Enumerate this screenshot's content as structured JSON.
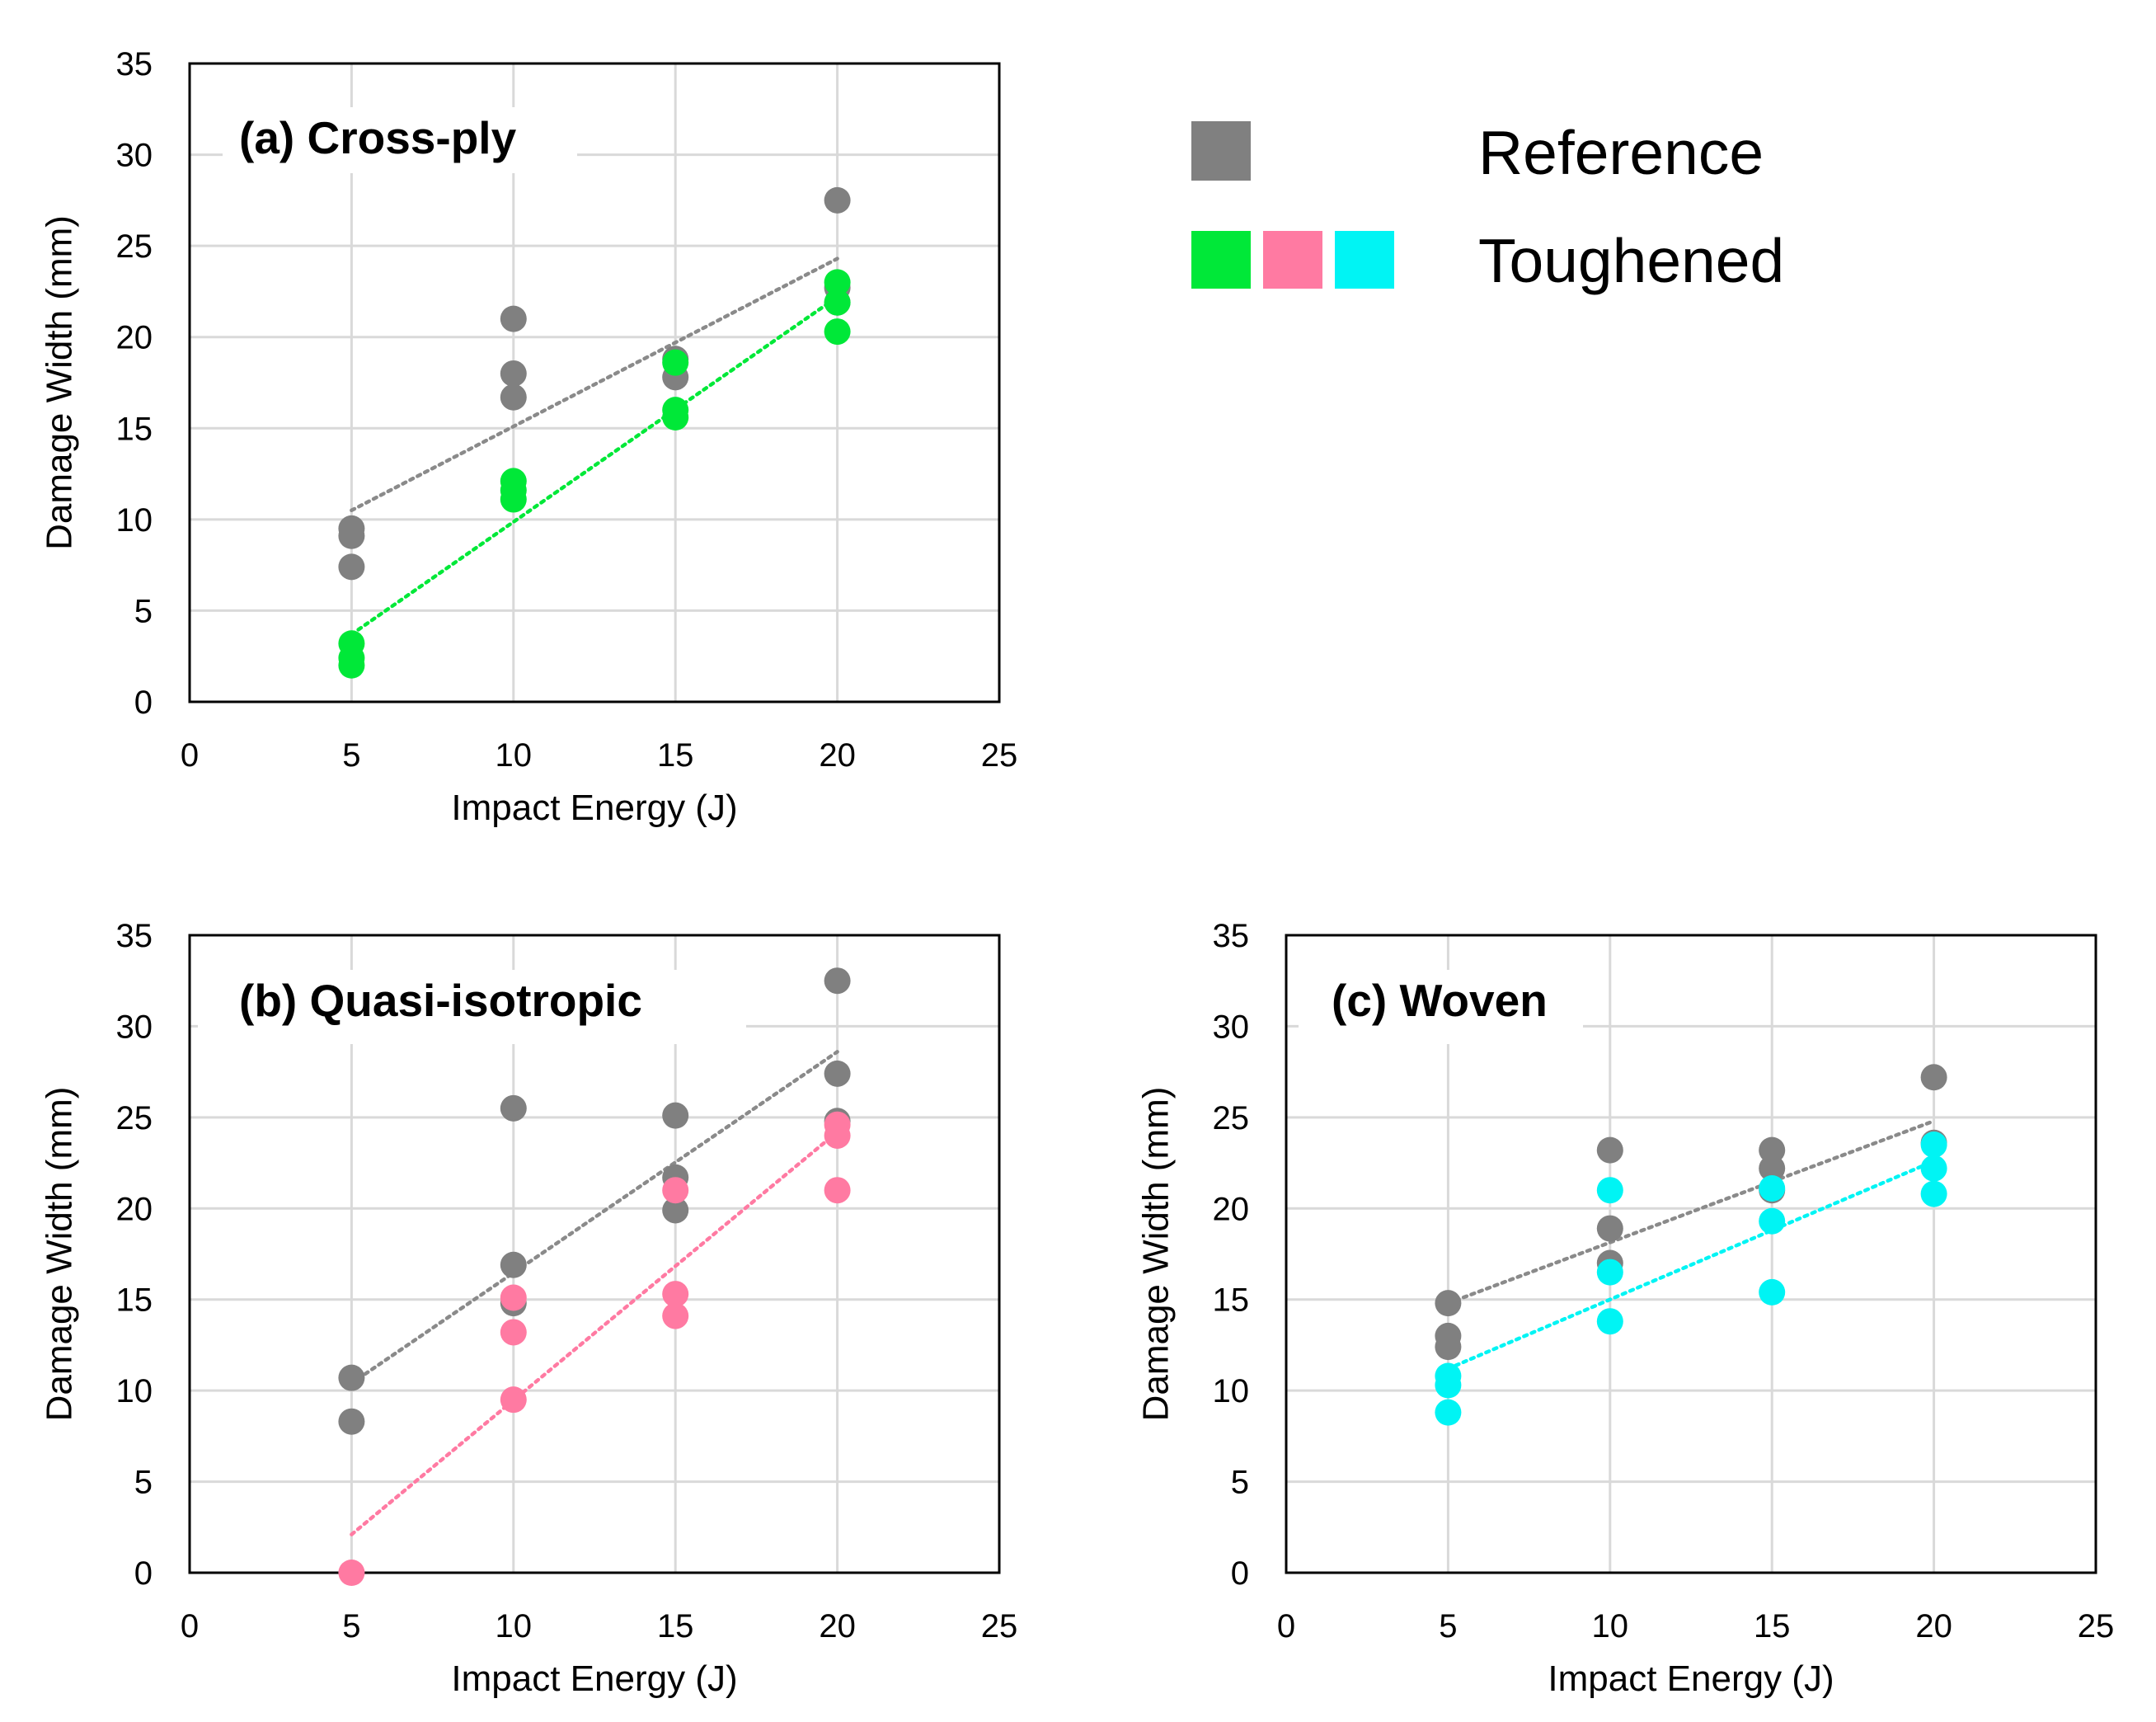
{
  "legend": {
    "reference_label": "Reference",
    "toughened_label": "Toughened",
    "reference_color": "#808080",
    "toughened_colors": [
      "#00E838",
      "#FF7AA2",
      "#00F4F4"
    ]
  },
  "colors": {
    "trend_reference": "#8A8A8A"
  },
  "chart_data": [
    {
      "type": "scatter",
      "title": "(a) Cross-ply",
      "xlabel": "Impact Energy (J)",
      "ylabel": "Damage Width (mm)",
      "xlim": [
        0,
        25
      ],
      "ylim": [
        0,
        35
      ],
      "xticks": [
        "0",
        "5",
        "10",
        "15",
        "20",
        "25"
      ],
      "yticks": [
        "0",
        "5",
        "10",
        "15",
        "20",
        "25",
        "30",
        "35"
      ],
      "grid": true,
      "series": [
        {
          "name": "Reference",
          "color": "#808080",
          "x": [
            5,
            5,
            5,
            10,
            10,
            10,
            15,
            15,
            20,
            20,
            20
          ],
          "y": [
            9.5,
            9.1,
            7.4,
            21,
            18,
            16.7,
            18.8,
            17.8,
            27.5,
            22.7,
            21.9
          ],
          "trend": [
            [
              5,
              10.5
            ],
            [
              20,
              24.3
            ]
          ]
        },
        {
          "name": "Toughened",
          "color": "#00E838",
          "x": [
            5,
            5,
            5,
            10,
            10,
            10,
            15,
            15,
            15,
            20,
            20,
            20
          ],
          "y": [
            3.2,
            2.4,
            2.0,
            12.1,
            11.6,
            11.1,
            18.6,
            16,
            15.6,
            23,
            21.9,
            20.3
          ],
          "trend": [
            [
              5,
              3.7
            ],
            [
              20,
              22.2
            ]
          ]
        }
      ]
    },
    {
      "type": "scatter",
      "title": "(b) Quasi-isotropic",
      "xlabel": "Impact Energy (J)",
      "ylabel": "Damage Width (mm)",
      "xlim": [
        0,
        25
      ],
      "ylim": [
        0,
        35
      ],
      "xticks": [
        "0",
        "5",
        "10",
        "15",
        "20",
        "25"
      ],
      "yticks": [
        "0",
        "5",
        "10",
        "15",
        "20",
        "25",
        "30",
        "35"
      ],
      "grid": true,
      "series": [
        {
          "name": "Reference",
          "color": "#808080",
          "x": [
            5,
            5,
            10,
            10,
            10,
            15,
            15,
            15,
            20,
            20,
            20
          ],
          "y": [
            10.7,
            8.3,
            25.5,
            16.9,
            14.8,
            25.1,
            21.7,
            19.9,
            32.5,
            27.4,
            24.8
          ],
          "trend": [
            [
              5,
              10.4
            ],
            [
              20,
              28.6
            ]
          ]
        },
        {
          "name": "Toughened",
          "color": "#FF7AA2",
          "x": [
            5,
            10,
            10,
            10,
            15,
            15,
            15,
            20,
            20,
            20
          ],
          "y": [
            0,
            15.1,
            13.2,
            9.5,
            21,
            15.3,
            14.1,
            24.6,
            24,
            21
          ],
          "trend": [
            [
              5,
              2.1
            ],
            [
              20,
              24.2
            ]
          ]
        }
      ]
    },
    {
      "type": "scatter",
      "title": "(c) Woven",
      "xlabel": "Impact Energy (J)",
      "ylabel": "Damage Width (mm)",
      "xlim": [
        0,
        25
      ],
      "ylim": [
        0,
        35
      ],
      "xticks": [
        "0",
        "5",
        "10",
        "15",
        "20",
        "25"
      ],
      "yticks": [
        "0",
        "5",
        "10",
        "15",
        "20",
        "25",
        "30",
        "35"
      ],
      "grid": true,
      "series": [
        {
          "name": "Reference",
          "color": "#808080",
          "x": [
            5,
            5,
            5,
            10,
            10,
            10,
            15,
            15,
            15,
            20,
            20
          ],
          "y": [
            14.8,
            13,
            12.4,
            23.2,
            18.9,
            17,
            23.2,
            22.2,
            21,
            27.2,
            23.6
          ],
          "trend": [
            [
              5,
              14.8
            ],
            [
              20,
              24.8
            ]
          ]
        },
        {
          "name": "Toughened",
          "color": "#00F4F4",
          "x": [
            5,
            5,
            5,
            10,
            10,
            10,
            15,
            15,
            15,
            20,
            20,
            20
          ],
          "y": [
            10.8,
            10.3,
            8.8,
            21,
            16.5,
            13.8,
            21.1,
            19.3,
            15.4,
            23.5,
            22.2,
            20.8
          ],
          "trend": [
            [
              5,
              11.2
            ],
            [
              20,
              22.6
            ]
          ]
        }
      ]
    }
  ]
}
